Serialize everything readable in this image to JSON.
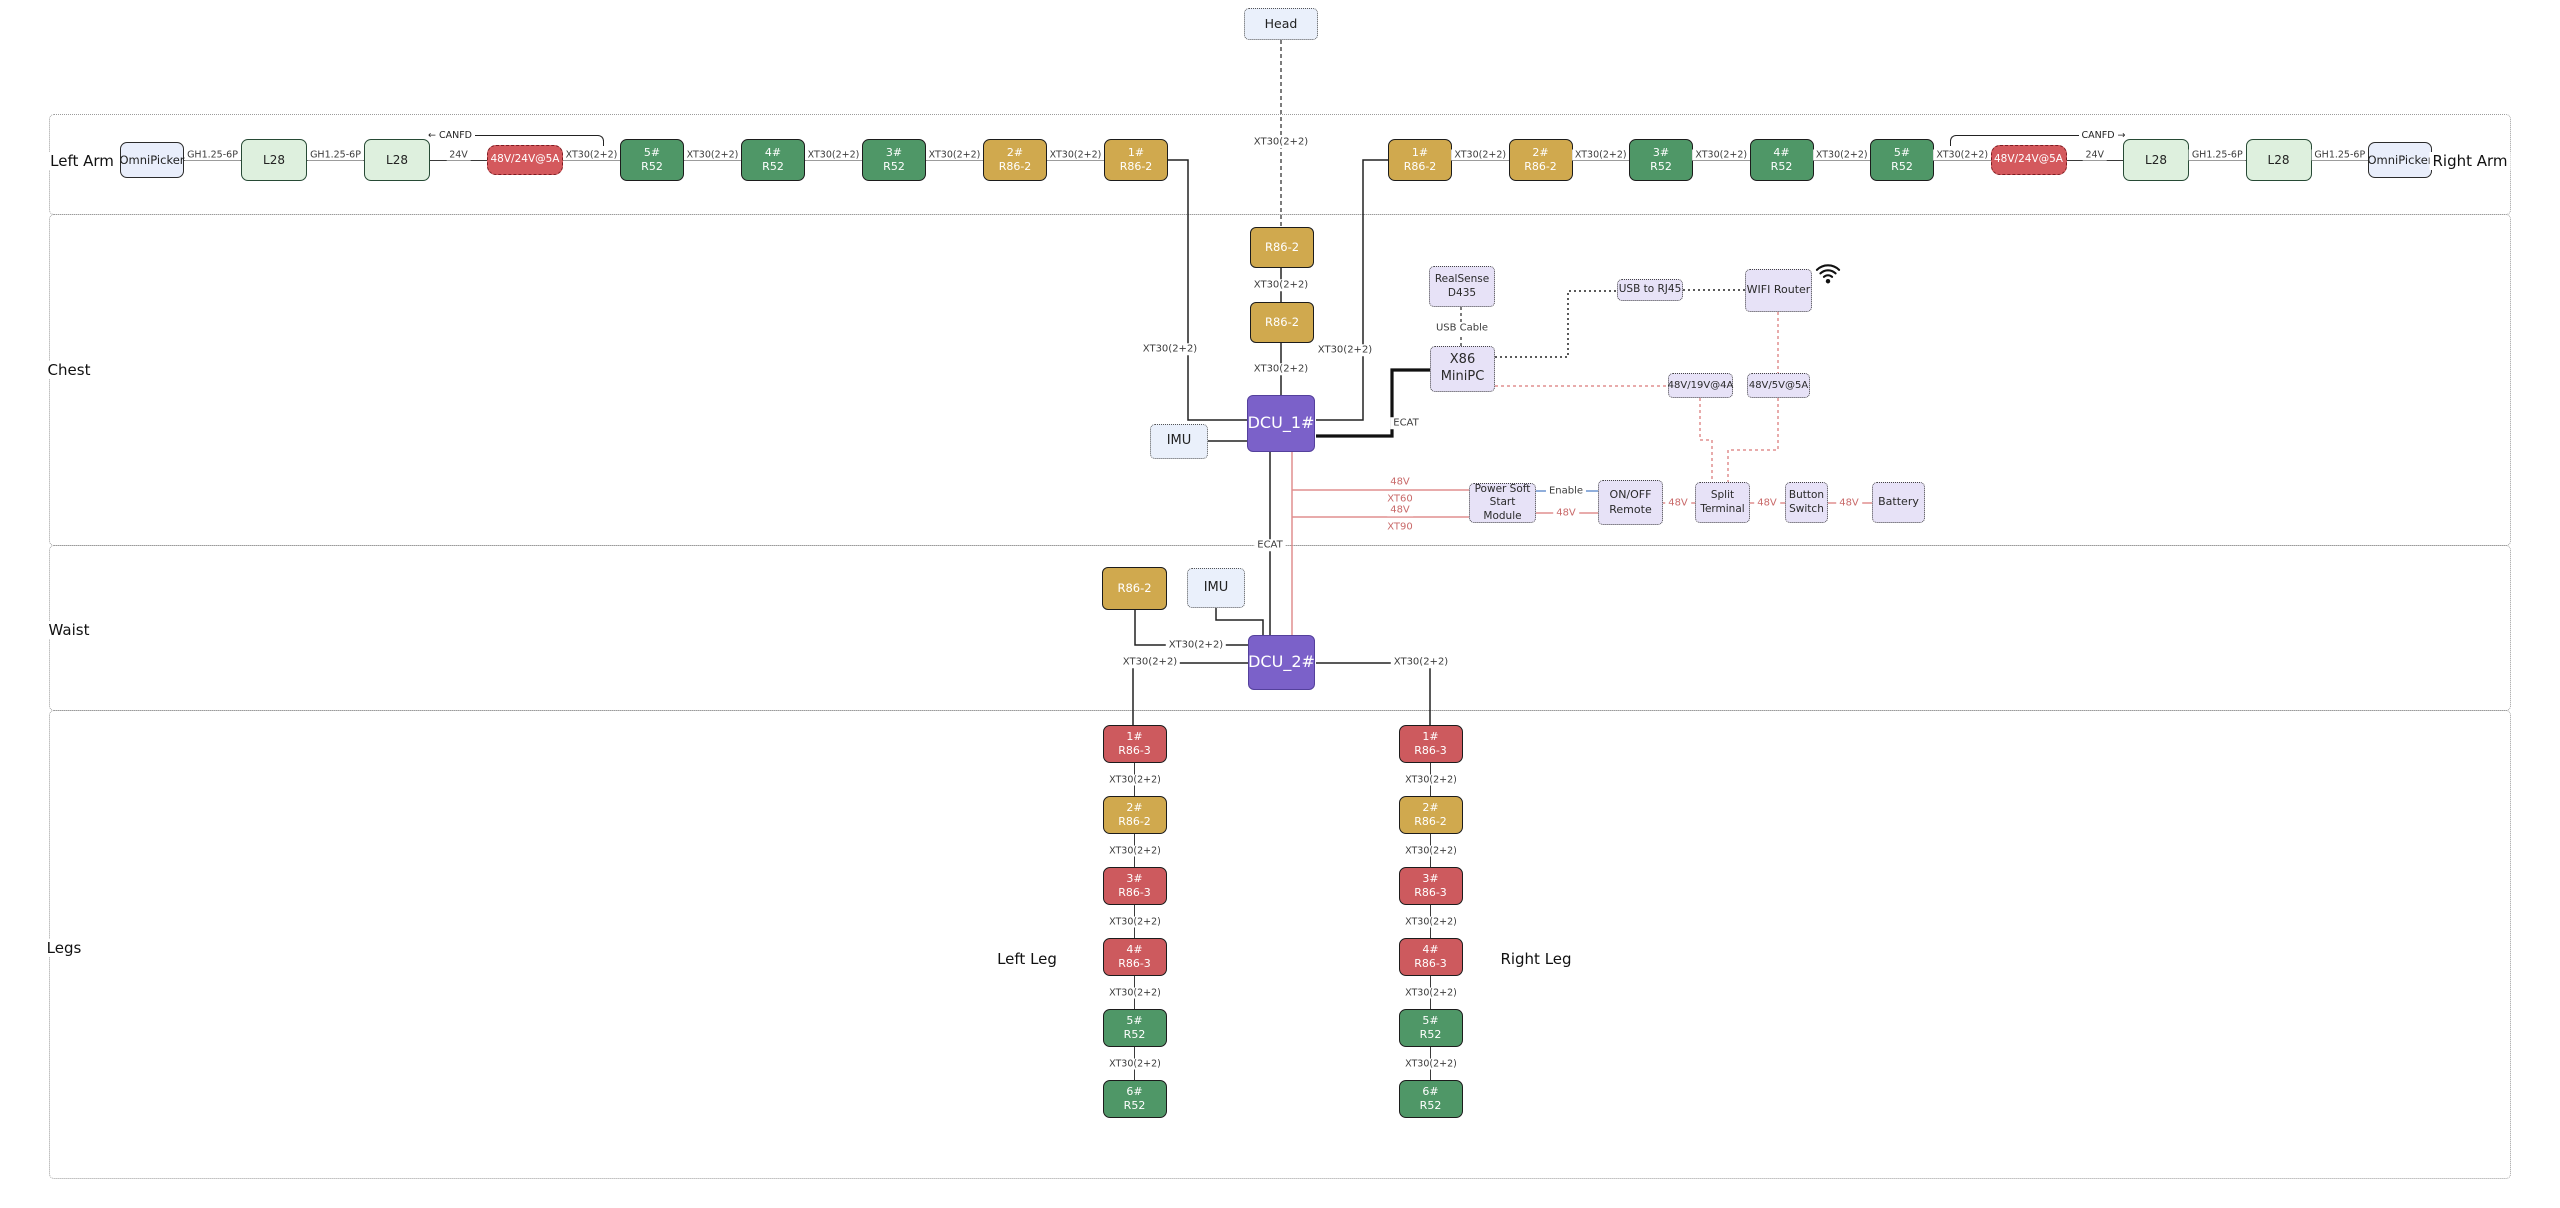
{
  "labels": {
    "head": "Head",
    "left_arm": "Left Arm",
    "right_arm": "Right Arm",
    "chest": "Chest",
    "waist": "Waist",
    "legs": "Legs",
    "left_leg": "Left Leg",
    "right_leg": "Right Leg",
    "canfd": "CANFD",
    "ecat_horizontal": "ECAT",
    "ecat_vertical": "ECAT",
    "usb_cable": "USB Cable",
    "enable": "Enable",
    "xt30_head": "XT30(2+2)",
    "xt30_motor_a": "XT30(2+2)",
    "xt30_motor_b": "XT30(2+2)",
    "xt30_left_arm_drop": "XT30(2+2)",
    "xt30_right_arm_drop": "XT30(2+2)",
    "branch_a_voltage": "48V",
    "branch_a_conn": "XT60",
    "branch_b_voltage": "48V",
    "branch_b_conn": "XT90",
    "v48_pssm_out": "48V",
    "v48_split_in": "48V",
    "v48_button_in": "48V",
    "v48_battery_in": "48V",
    "xt30_waist_motor": "XT30(2+2)",
    "xt30_left_leg_out": "XT30(2+2)",
    "xt30_right_leg_out": "XT30(2+2)"
  },
  "boxes": {
    "motor_a": "R86-2",
    "motor_b": "R86-2",
    "dcu1": "DCU_1#",
    "imu_chest": "IMU",
    "realsense": [
      "RealSense",
      "D435"
    ],
    "minipc": [
      "X86",
      "MiniPC"
    ],
    "usb_rj45": "USB to RJ45",
    "wifi_router": "WIFI Router",
    "conv_19v": "48V/19V@4A",
    "conv_5v": "48V/5V@5A",
    "pssm": [
      "Power Soft",
      "Start Module"
    ],
    "onoff": [
      "ON/OFF",
      "Remote"
    ],
    "split": [
      "Split",
      "Terminal"
    ],
    "button": [
      "Button",
      "Switch"
    ],
    "battery": "Battery",
    "waist_motor": "R86-2",
    "imu_waist": "IMU",
    "dcu2": "DCU_2#"
  },
  "chains": {
    "left_arm": [
      {
        "t": "n",
        "s": "picker",
        "l": [
          "OmniPicker"
        ]
      },
      {
        "t": "c",
        "l": "GH1.25-6P"
      },
      {
        "t": "n",
        "s": "l28",
        "l": [
          "L28"
        ]
      },
      {
        "t": "c",
        "l": "GH1.25-6P"
      },
      {
        "t": "n",
        "s": "l28",
        "l": [
          "L28"
        ]
      },
      {
        "t": "c",
        "l": "24V"
      },
      {
        "t": "n",
        "s": "pwr",
        "l": [
          "48V/24V@5A"
        ],
        "canfd": "left"
      },
      {
        "t": "c",
        "l": "XT30(2+2)"
      },
      {
        "t": "n",
        "s": "r52",
        "l": [
          "5#",
          "R52"
        ]
      },
      {
        "t": "c",
        "l": "XT30(2+2)"
      },
      {
        "t": "n",
        "s": "r52",
        "l": [
          "4#",
          "R52"
        ]
      },
      {
        "t": "c",
        "l": "XT30(2+2)"
      },
      {
        "t": "n",
        "s": "r52",
        "l": [
          "3#",
          "R52"
        ]
      },
      {
        "t": "c",
        "l": "XT30(2+2)"
      },
      {
        "t": "n",
        "s": "r86-2",
        "l": [
          "2#",
          "R86-2"
        ]
      },
      {
        "t": "c",
        "l": "XT30(2+2)"
      },
      {
        "t": "n",
        "s": "r86-2",
        "l": [
          "1#",
          "R86-2"
        ]
      }
    ],
    "right_arm": [
      {
        "t": "n",
        "s": "r86-2",
        "l": [
          "1#",
          "R86-2"
        ]
      },
      {
        "t": "c",
        "l": "XT30(2+2)"
      },
      {
        "t": "n",
        "s": "r86-2",
        "l": [
          "2#",
          "R86-2"
        ]
      },
      {
        "t": "c",
        "l": "XT30(2+2)"
      },
      {
        "t": "n",
        "s": "r52",
        "l": [
          "3#",
          "R52"
        ]
      },
      {
        "t": "c",
        "l": "XT30(2+2)"
      },
      {
        "t": "n",
        "s": "r52",
        "l": [
          "4#",
          "R52"
        ]
      },
      {
        "t": "c",
        "l": "XT30(2+2)"
      },
      {
        "t": "n",
        "s": "r52",
        "l": [
          "5#",
          "R52"
        ]
      },
      {
        "t": "c",
        "l": "XT30(2+2)"
      },
      {
        "t": "n",
        "s": "pwr",
        "l": [
          "48V/24V@5A"
        ],
        "canfd": "right"
      },
      {
        "t": "c",
        "l": "24V"
      },
      {
        "t": "n",
        "s": "l28",
        "l": [
          "L28"
        ]
      },
      {
        "t": "c",
        "l": "GH1.25-6P"
      },
      {
        "t": "n",
        "s": "l28",
        "l": [
          "L28"
        ]
      },
      {
        "t": "c",
        "l": "GH1.25-6P"
      },
      {
        "t": "n",
        "s": "picker",
        "l": [
          "OmniPicker"
        ]
      }
    ],
    "left_leg": [
      {
        "t": "n",
        "s": "r86-3",
        "l": [
          "1#",
          "R86-3"
        ]
      },
      {
        "t": "c",
        "l": "XT30(2+2)"
      },
      {
        "t": "n",
        "s": "r86-2",
        "l": [
          "2#",
          "R86-2"
        ]
      },
      {
        "t": "c",
        "l": "XT30(2+2)"
      },
      {
        "t": "n",
        "s": "r86-3",
        "l": [
          "3#",
          "R86-3"
        ]
      },
      {
        "t": "c",
        "l": "XT30(2+2)"
      },
      {
        "t": "n",
        "s": "r86-3",
        "l": [
          "4#",
          "R86-3"
        ]
      },
      {
        "t": "c",
        "l": "XT30(2+2)"
      },
      {
        "t": "n",
        "s": "r52",
        "l": [
          "5#",
          "R52"
        ]
      },
      {
        "t": "c",
        "l": "XT30(2+2)"
      },
      {
        "t": "n",
        "s": "r52",
        "l": [
          "6#",
          "R52"
        ]
      }
    ],
    "right_leg": [
      {
        "t": "n",
        "s": "r86-3",
        "l": [
          "1#",
          "R86-3"
        ]
      },
      {
        "t": "c",
        "l": "XT30(2+2)"
      },
      {
        "t": "n",
        "s": "r86-2",
        "l": [
          "2#",
          "R86-2"
        ]
      },
      {
        "t": "c",
        "l": "XT30(2+2)"
      },
      {
        "t": "n",
        "s": "r86-3",
        "l": [
          "3#",
          "R86-3"
        ]
      },
      {
        "t": "c",
        "l": "XT30(2+2)"
      },
      {
        "t": "n",
        "s": "r86-3",
        "l": [
          "4#",
          "R86-3"
        ]
      },
      {
        "t": "c",
        "l": "XT30(2+2)"
      },
      {
        "t": "n",
        "s": "r52",
        "l": [
          "5#",
          "R52"
        ]
      },
      {
        "t": "c",
        "l": "XT30(2+2)"
      },
      {
        "t": "n",
        "s": "r52",
        "l": [
          "6#",
          "R52"
        ]
      }
    ]
  },
  "colors": {
    "motor_green": "#4f9767",
    "motor_gold": "#d0a94e",
    "motor_red": "#cd5a5e",
    "dcu_purple": "#7b61c9",
    "power_converter_red": "#d4595d",
    "peripheral_lavender": "#e7e2f7",
    "sensor_light_blue": "#eaf0fb",
    "l28_light_green": "#def0de",
    "wire_power_red": "#e08f8f",
    "wire_enable_blue": "#6b93cf"
  }
}
